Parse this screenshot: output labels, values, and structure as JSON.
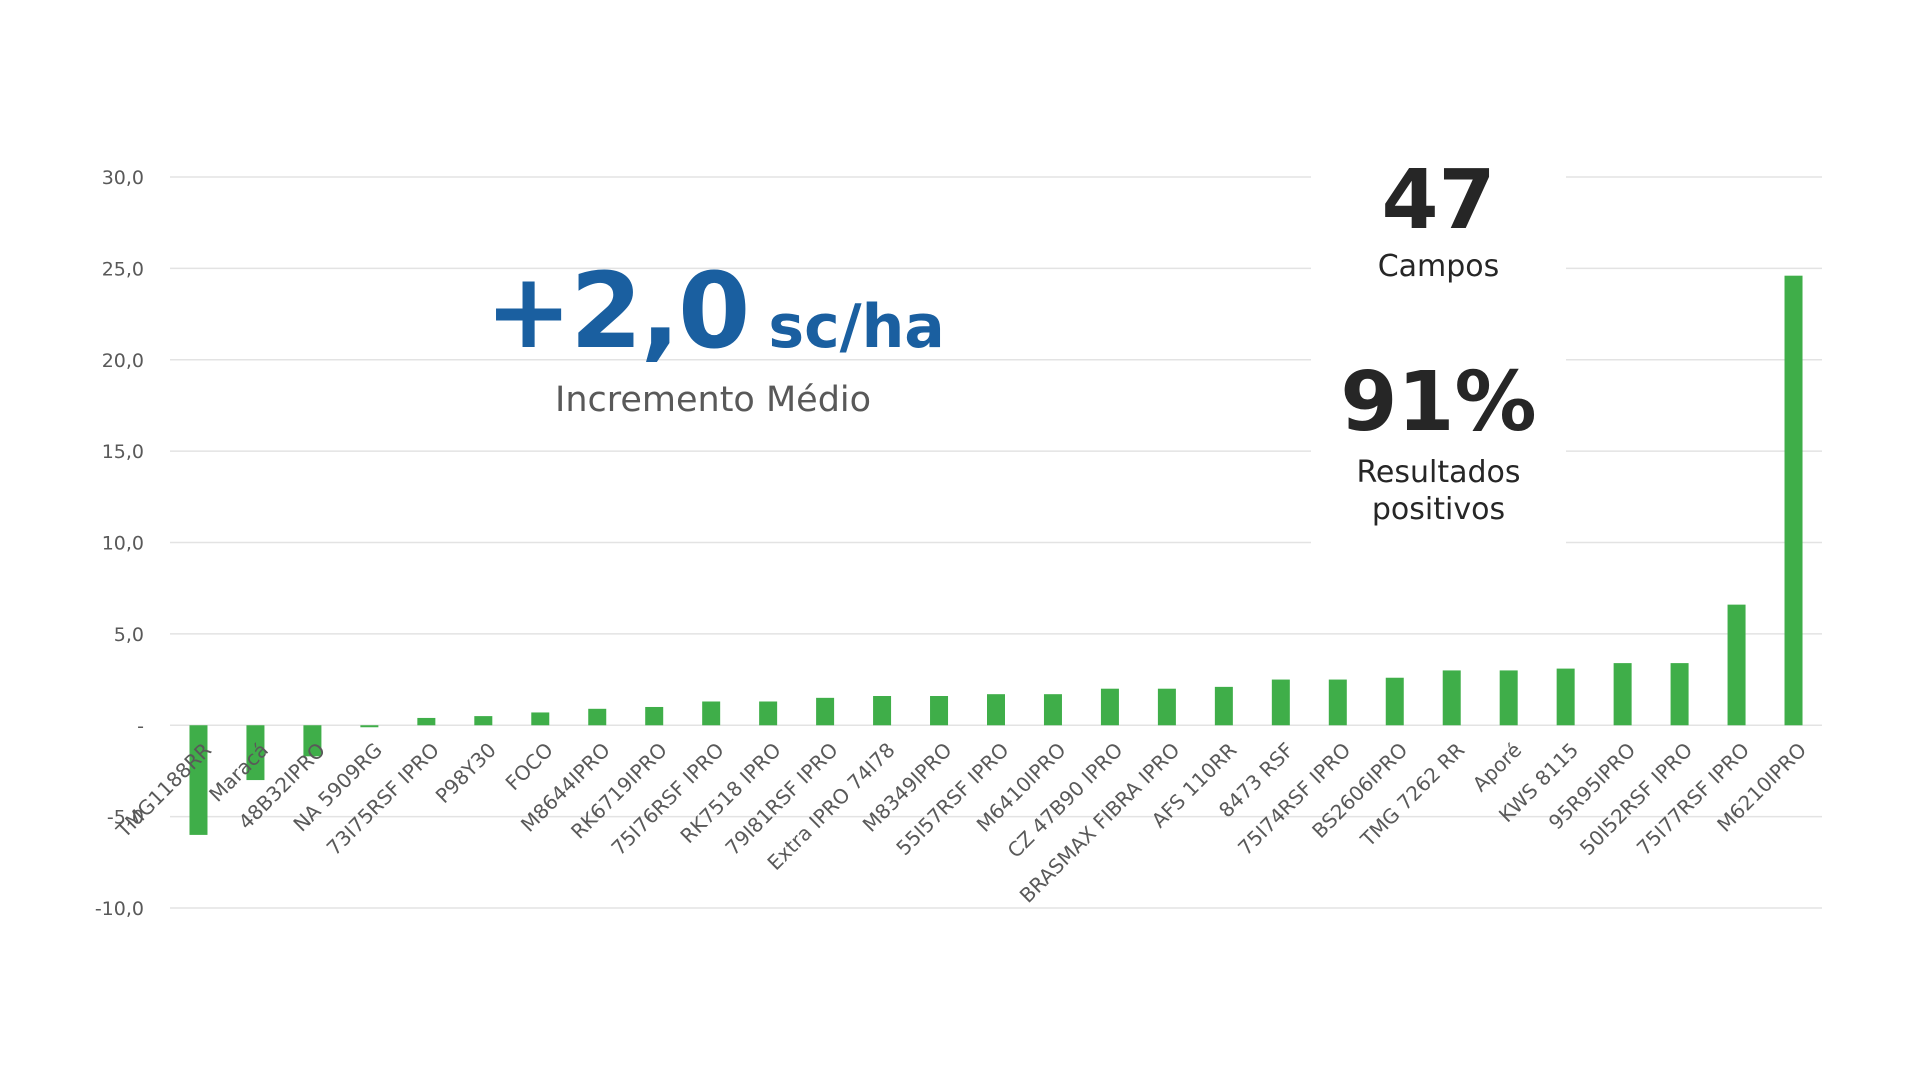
{
  "chart_data": {
    "type": "bar",
    "title": "",
    "xlabel": "",
    "ylabel": "",
    "ylim": [
      -10,
      30
    ],
    "yticks": [
      30,
      25,
      20,
      15,
      10,
      5,
      0,
      -5,
      -10
    ],
    "ytick_labels": [
      "30,0",
      "25,0",
      "20,0",
      "15,0",
      "10,0",
      "5,0",
      "-",
      "-5,0",
      "-10,0"
    ],
    "grid": true,
    "categories": [
      "TMG1188RR",
      "Maracá",
      "48B32IPRO",
      "NA 5909RG",
      "73I75RSF IPRO",
      "P98Y30",
      "FOCO",
      "M8644IPRO",
      "RK6719IPRO",
      "75I76RSF IPRO",
      "RK7518 IPRO",
      "79I81RSF IPRO",
      "Extra IPRO 74I78",
      "M8349IPRO",
      "55I57RSF IPRO",
      "M6410IPRO",
      "CZ 47B90 IPRO",
      "BRASMAX FIBRA IPRO",
      "AFS 110RR",
      "8473 RSF",
      "75I74RSF IPRO",
      "BS2606IPRO",
      "TMG 7262 RR",
      "Aporé",
      "KWS 8115",
      "95R95IPRO",
      "50I52RSF IPRO",
      "75I77RSF IPRO",
      "M6210IPRO"
    ],
    "values": [
      -6.0,
      -3.0,
      -1.7,
      -0.1,
      0.4,
      0.5,
      0.7,
      0.9,
      1.0,
      1.3,
      1.3,
      1.5,
      1.6,
      1.6,
      1.7,
      1.7,
      2.0,
      2.0,
      2.1,
      2.5,
      2.5,
      2.6,
      3.0,
      3.0,
      3.1,
      3.4,
      3.4,
      6.6,
      24.6
    ],
    "color": "#3fae49"
  },
  "headline": {
    "value": "+2,0",
    "unit": "sc/ha",
    "label": "Incremento Médio",
    "color": "#1a5fa0"
  },
  "stats": {
    "fields_count": "47",
    "fields_label": "Campos",
    "positive_pct": "91%",
    "positive_label_1": "Resultados",
    "positive_label_2": "positivos"
  }
}
